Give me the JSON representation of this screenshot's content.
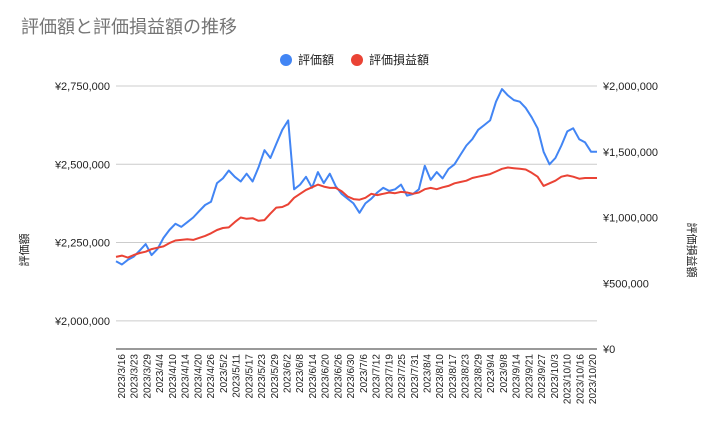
{
  "chart_data": {
    "type": "line",
    "title": "評価額と評価損益額の推移",
    "xlabel": "",
    "ylabel_left": "評価額",
    "ylabel_right": "評価損益額",
    "y_left_ticks": [
      "¥2,000,000",
      "¥2,250,000",
      "¥2,500,000",
      "¥2,750,000"
    ],
    "y_left_tick_values": [
      2000000,
      2250000,
      2500000,
      2750000
    ],
    "y_left_range": [
      1910000,
      2750000
    ],
    "y_right_ticks": [
      "¥0",
      "¥500,000",
      "¥1,000,000",
      "¥1,500,000",
      "¥2,000,000"
    ],
    "y_right_tick_values": [
      0,
      500000,
      1000000,
      1500000,
      2000000
    ],
    "y_right_range": [
      0,
      2000000
    ],
    "legend_position": "top",
    "grid": true,
    "x_ticks": [
      "2023/3/16",
      "2023/3/23",
      "2023/3/29",
      "2023/4/4",
      "2023/4/10",
      "2023/4/14",
      "2023/4/20",
      "2023/4/26",
      "2023/5/2",
      "2023/5/11",
      "2023/5/17",
      "2023/5/23",
      "2023/5/29",
      "2023/6/2",
      "2023/6/8",
      "2023/6/14",
      "2023/6/20",
      "2023/6/26",
      "2023/6/30",
      "2023/7/6",
      "2023/7/12",
      "2023/7/19",
      "2023/7/25",
      "2023/7/31",
      "2023/8/4",
      "2023/8/10",
      "2023/8/17",
      "2023/8/23",
      "2023/8/29",
      "2023/9/4",
      "2023/9/8",
      "2023/9/14",
      "2023/9/21",
      "2023/9/27",
      "2023/10/3",
      "2023/10/10",
      "2023/10/16",
      "2023/10/20"
    ],
    "series": [
      {
        "name": "評価額",
        "axis": "left",
        "color": "#4285f4",
        "values": [
          2190000,
          2180000,
          2195000,
          2205000,
          2225000,
          2245000,
          2210000,
          2230000,
          2265000,
          2290000,
          2310000,
          2300000,
          2315000,
          2330000,
          2350000,
          2370000,
          2380000,
          2440000,
          2455000,
          2480000,
          2460000,
          2445000,
          2470000,
          2445000,
          2490000,
          2545000,
          2520000,
          2565000,
          2610000,
          2640000,
          2420000,
          2435000,
          2460000,
          2425000,
          2475000,
          2440000,
          2470000,
          2430000,
          2405000,
          2390000,
          2375000,
          2345000,
          2375000,
          2390000,
          2410000,
          2425000,
          2415000,
          2420000,
          2435000,
          2400000,
          2405000,
          2420000,
          2495000,
          2450000,
          2475000,
          2455000,
          2485000,
          2500000,
          2530000,
          2560000,
          2580000,
          2610000,
          2625000,
          2640000,
          2700000,
          2740000,
          2720000,
          2705000,
          2700000,
          2680000,
          2650000,
          2615000,
          2540000,
          2500000,
          2520000,
          2560000,
          2605000,
          2615000,
          2580000,
          2570000,
          2540000,
          2540000
        ]
      },
      {
        "name": "評価損益額",
        "axis": "right",
        "color": "#ea4335",
        "values": [
          700000,
          710000,
          695000,
          715000,
          730000,
          740000,
          760000,
          770000,
          780000,
          805000,
          825000,
          830000,
          835000,
          830000,
          845000,
          860000,
          880000,
          905000,
          920000,
          925000,
          965000,
          1000000,
          990000,
          995000,
          975000,
          980000,
          1030000,
          1075000,
          1080000,
          1100000,
          1150000,
          1180000,
          1210000,
          1230000,
          1250000,
          1235000,
          1225000,
          1225000,
          1200000,
          1160000,
          1140000,
          1135000,
          1150000,
          1180000,
          1170000,
          1180000,
          1190000,
          1185000,
          1195000,
          1190000,
          1180000,
          1190000,
          1215000,
          1225000,
          1215000,
          1230000,
          1240000,
          1260000,
          1270000,
          1280000,
          1300000,
          1310000,
          1320000,
          1330000,
          1350000,
          1370000,
          1380000,
          1375000,
          1370000,
          1365000,
          1340000,
          1310000,
          1240000,
          1260000,
          1280000,
          1310000,
          1320000,
          1310000,
          1295000,
          1300000,
          1300000,
          1300000
        ]
      }
    ]
  }
}
